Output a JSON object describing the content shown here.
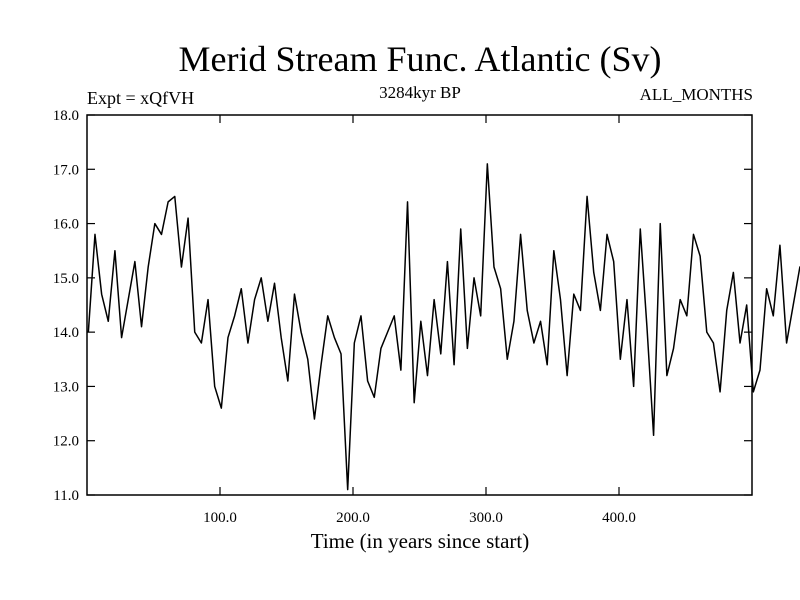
{
  "chart_data": {
    "type": "line",
    "title": "Merid Stream Func. Atlantic (Sv)",
    "subtitle_left": "Expt = xQfVH",
    "subtitle_center": "3284kyr BP",
    "subtitle_right": "ALL_MONTHS",
    "xlabel": "Time (in years since start)",
    "ylabel": "",
    "xlim": [
      0,
      500
    ],
    "ylim": [
      11.0,
      18.0
    ],
    "x_ticks": [
      100,
      200,
      300,
      400
    ],
    "x_tick_labels": [
      "100.0",
      "200.0",
      "300.0",
      "400.0"
    ],
    "y_ticks": [
      11,
      12,
      13,
      14,
      15,
      16,
      17,
      18
    ],
    "y_tick_labels": [
      "11.0",
      "12.0",
      "13.0",
      "14.0",
      "15.0",
      "16.0",
      "17.0",
      "18.0"
    ],
    "grid": false,
    "series": [
      {
        "name": "Merid Stream Func. Atlantic",
        "color": "#000000",
        "x_start": 1,
        "x_step": 5,
        "values": [
          14.0,
          15.8,
          14.7,
          14.2,
          15.5,
          13.9,
          14.6,
          15.3,
          14.1,
          15.2,
          16.0,
          15.8,
          16.4,
          16.5,
          15.2,
          16.1,
          14.0,
          13.8,
          14.6,
          13.0,
          12.6,
          13.9,
          14.3,
          14.8,
          13.8,
          14.6,
          15.0,
          14.2,
          14.9,
          13.9,
          13.1,
          14.7,
          14.0,
          13.5,
          12.4,
          13.4,
          14.3,
          13.9,
          13.6,
          11.1,
          13.8,
          14.3,
          13.1,
          12.8,
          13.7,
          14.0,
          14.3,
          13.3,
          16.4,
          12.7,
          14.2,
          13.2,
          14.6,
          13.6,
          15.3,
          13.4,
          15.9,
          13.7,
          15.0,
          14.3,
          17.1,
          15.2,
          14.8,
          13.5,
          14.2,
          15.8,
          14.4,
          13.8,
          14.2,
          13.4,
          15.5,
          14.6,
          13.2,
          14.7,
          14.4,
          16.5,
          15.1,
          14.4,
          15.8,
          15.3,
          13.5,
          14.6,
          13.0,
          15.9,
          14.1,
          12.1,
          16.0,
          13.2,
          13.7,
          14.6,
          14.3,
          15.8,
          15.4,
          14.0,
          13.8,
          12.9,
          14.4,
          15.1,
          13.8,
          14.5,
          12.9,
          13.3,
          14.8,
          14.3,
          15.6,
          13.8,
          14.5,
          15.2,
          15.0,
          14.0,
          15.1,
          14.2,
          15.4,
          12.6,
          14.5,
          16.1,
          15.3,
          14.6,
          15.4,
          13.8,
          15.6,
          14.7,
          14.0,
          14.6,
          15.5,
          13.9,
          14.7,
          14.4,
          15.9,
          14.0,
          15.0,
          13.6,
          15.6,
          16.0,
          14.1,
          14.8,
          13.9,
          16.2,
          15.7,
          13.2,
          12.4,
          13.5,
          11.7,
          14.5,
          13.0,
          12.7,
          13.5,
          12.3,
          14.1,
          12.5,
          14.4,
          13.7,
          14.2,
          12.6,
          13.9,
          11.8,
          14.5,
          13.6,
          14.4,
          12.7,
          15.3,
          13.7,
          15.0,
          14.1,
          12.8,
          15.2,
          13.7,
          14.5,
          15.1,
          14.2,
          13.6,
          14.6,
          14.0,
          14.1,
          13.5,
          14.5,
          13.1,
          14.4,
          13.7,
          14.9,
          13.8,
          15.4,
          13.5,
          15.8,
          14.6,
          13.0,
          15.4,
          14.0,
          15.6,
          14.3,
          13.2,
          15.8,
          14.7,
          13.7,
          14.4,
          13.2,
          14.1,
          13.9,
          15.2,
          14.6,
          13.7,
          15.0,
          14.2,
          13.3,
          14.6,
          13.4,
          15.6,
          14.0,
          14.8,
          13.8,
          15.3,
          14.5,
          13.6,
          15.2,
          14.4,
          16.2,
          15.0,
          13.9,
          14.8,
          12.7,
          13.9,
          12.5,
          14.6,
          12.2,
          13.7,
          14.9,
          13.5,
          12.9,
          15.0,
          13.8,
          14.4,
          13.1,
          14.6,
          12.9,
          14.7,
          13.8,
          14.3,
          13.3,
          14.4,
          15.1,
          14.0,
          13.2,
          14.5,
          12.6,
          14.4,
          13.9,
          14.8,
          12.9,
          13.4,
          14.4,
          15.0,
          13.7,
          14.3,
          12.4,
          13.6,
          14.9,
          13.9,
          15.4,
          14.2,
          13.2,
          14.9,
          13.4,
          14.1,
          15.1,
          14.5,
          12.9,
          14.6,
          13.6,
          14.4,
          13.9,
          15.1,
          13.4,
          15.3,
          14.1,
          15.0,
          13.6,
          15.2,
          14.4,
          13.1,
          14.8,
          13.9,
          14.3,
          13.0,
          14.6,
          14.3,
          14.8,
          14.0,
          15.4,
          14.7,
          13.6,
          14.0,
          15.0,
          13.3,
          14.3,
          13.8,
          14.9,
          13.6,
          14.2,
          13.4,
          14.8,
          13.9,
          15.0,
          14.1,
          13.3,
          14.6,
          15.6,
          14.1,
          12.4,
          13.9,
          14.7,
          13.6,
          14.5,
          13.8,
          14.2,
          14.0,
          14.4,
          13.9,
          14.7,
          14.3,
          13.8,
          15.1,
          15.4,
          13.7,
          13.1,
          14.3,
          15.0,
          13.5,
          14.8,
          14.1,
          15.0,
          13.4,
          13.9,
          15.1,
          14.6,
          15.0,
          15.3,
          14.3,
          13.9,
          14.6,
          13.4,
          14.8,
          14.5,
          13.5,
          14.6,
          14.0,
          14.5,
          13.8,
          15.0,
          13.8,
          15.2,
          13.7,
          14.8,
          14.7,
          14.1,
          13.7,
          14.5,
          14.8,
          13.4,
          14.9,
          13.9,
          15.8,
          13.8,
          14.6,
          13.8,
          14.9,
          14.0,
          14.5,
          13.3,
          15.6,
          14.4,
          13.4,
          15.1,
          14.3,
          13.6,
          14.7,
          14.5,
          14.0,
          14.5,
          13.3,
          14.6,
          14.2,
          15.6,
          14.7,
          14.0,
          15.1,
          13.2,
          14.3,
          14.6,
          13.9,
          15.0,
          14.1,
          14.4,
          14.7,
          13.5,
          14.7,
          13.7,
          15.0,
          14.5,
          15.7,
          14.7,
          14.2,
          13.9,
          14.5,
          15.7,
          15.0,
          14.1,
          15.8,
          14.2,
          15.1,
          16.3,
          14.4,
          14.8,
          13.7,
          14.6,
          13.1,
          14.0,
          12.3,
          13.5,
          11.6,
          13.0,
          12.5,
          14.0,
          12.8,
          13.5,
          12.4,
          13.7,
          12.9,
          14.0,
          12.6,
          13.4,
          12.3,
          13.9,
          12.8,
          14.2,
          13.3,
          12.6,
          14.3,
          13.6,
          12.9,
          13.5,
          12.5,
          13.7,
          13.2,
          14.1,
          12.4,
          13.3,
          12.8,
          13.8,
          11.9,
          14.2,
          12.8,
          13.4,
          13.7,
          12.2,
          13.1,
          14.4,
          13.8,
          15.0,
          13.6,
          15.3,
          14.2,
          13.9,
          15.0,
          14.3,
          13.8,
          14.4,
          13.4,
          13.9,
          14.2,
          13.1,
          14.3,
          14.8,
          13.6,
          14.0,
          13.4,
          14.2,
          13.7,
          14.3,
          12.9,
          13.6,
          14.1,
          13.2,
          13.8,
          14.5,
          14.0,
          13.9,
          13.1,
          14.1,
          13.5,
          13.9,
          15.2,
          15.6,
          15.4
        ]
      }
    ]
  }
}
